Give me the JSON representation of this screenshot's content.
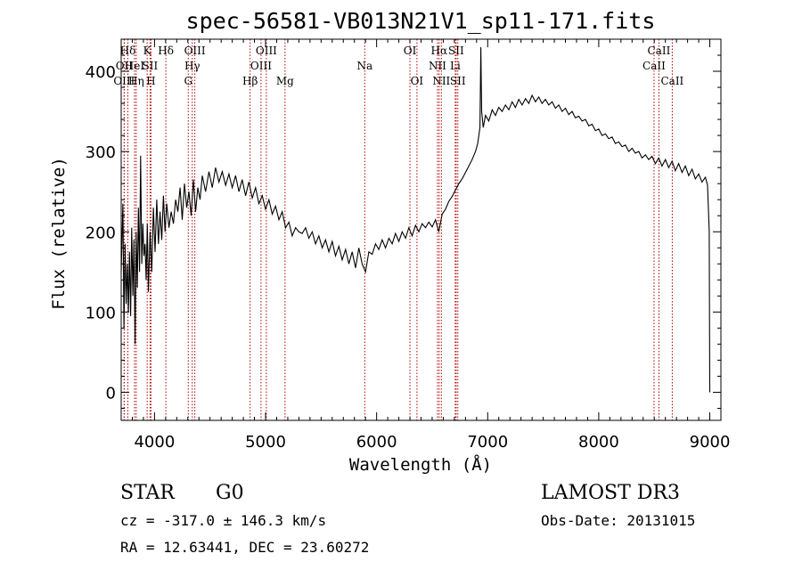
{
  "chart_data": {
    "type": "line",
    "title": "spec-56581-VB013N21V1_sp11-171.fits",
    "xlabel": "Wavelength (Å)",
    "ylabel": "Flux (relative)",
    "xlim": [
      3700,
      9100
    ],
    "ylim": [
      -35,
      440
    ],
    "xticks": [
      4000,
      5000,
      6000,
      7000,
      8000,
      9000
    ],
    "yticks": [
      0,
      100,
      200,
      300,
      400
    ],
    "grid": false,
    "series": [
      {
        "points": [
          [
            3700,
            150
          ],
          [
            3715,
            235
          ],
          [
            3725,
            80
          ],
          [
            3735,
            185
          ],
          [
            3745,
            110
          ],
          [
            3755,
            160
          ],
          [
            3765,
            100
          ],
          [
            3775,
            175
          ],
          [
            3785,
            95
          ],
          [
            3795,
            205
          ],
          [
            3805,
            120
          ],
          [
            3815,
            190
          ],
          [
            3825,
            60
          ],
          [
            3835,
            200
          ],
          [
            3845,
            130
          ],
          [
            3855,
            230
          ],
          [
            3865,
            150
          ],
          [
            3875,
            295
          ],
          [
            3885,
            160
          ],
          [
            3895,
            210
          ],
          [
            3905,
            170
          ],
          [
            3915,
            185
          ],
          [
            3925,
            140
          ],
          [
            3935,
            210
          ],
          [
            3945,
            125
          ],
          [
            3960,
            200
          ],
          [
            3975,
            150
          ],
          [
            3990,
            230
          ],
          [
            4005,
            175
          ],
          [
            4020,
            240
          ],
          [
            4035,
            185
          ],
          [
            4050,
            225
          ],
          [
            4065,
            190
          ],
          [
            4080,
            245
          ],
          [
            4095,
            200
          ],
          [
            4110,
            235
          ],
          [
            4130,
            205
          ],
          [
            4150,
            225
          ],
          [
            4170,
            210
          ],
          [
            4190,
            240
          ],
          [
            4210,
            225
          ],
          [
            4230,
            255
          ],
          [
            4250,
            215
          ],
          [
            4270,
            260
          ],
          [
            4290,
            230
          ],
          [
            4310,
            250
          ],
          [
            4330,
            220
          ],
          [
            4350,
            265
          ],
          [
            4370,
            225
          ],
          [
            4390,
            255
          ],
          [
            4410,
            240
          ],
          [
            4430,
            270
          ],
          [
            4460,
            250
          ],
          [
            4490,
            275
          ],
          [
            4520,
            255
          ],
          [
            4550,
            280
          ],
          [
            4580,
            262
          ],
          [
            4610,
            275
          ],
          [
            4640,
            258
          ],
          [
            4670,
            272
          ],
          [
            4700,
            255
          ],
          [
            4730,
            270
          ],
          [
            4760,
            250
          ],
          [
            4790,
            265
          ],
          [
            4820,
            245
          ],
          [
            4850,
            262
          ],
          [
            4880,
            242
          ],
          [
            4910,
            255
          ],
          [
            4940,
            235
          ],
          [
            4970,
            245
          ],
          [
            5000,
            228
          ],
          [
            5030,
            240
          ],
          [
            5060,
            222
          ],
          [
            5090,
            232
          ],
          [
            5120,
            215
          ],
          [
            5150,
            225
          ],
          [
            5180,
            205
          ],
          [
            5210,
            212
          ],
          [
            5240,
            195
          ],
          [
            5270,
            205
          ],
          [
            5300,
            200
          ],
          [
            5330,
            198
          ],
          [
            5360,
            205
          ],
          [
            5390,
            192
          ],
          [
            5420,
            200
          ],
          [
            5450,
            185
          ],
          [
            5480,
            195
          ],
          [
            5510,
            180
          ],
          [
            5540,
            190
          ],
          [
            5570,
            175
          ],
          [
            5600,
            188
          ],
          [
            5630,
            170
          ],
          [
            5660,
            182
          ],
          [
            5690,
            165
          ],
          [
            5720,
            178
          ],
          [
            5750,
            160
          ],
          [
            5780,
            175
          ],
          [
            5810,
            155
          ],
          [
            5840,
            180
          ],
          [
            5870,
            160
          ],
          [
            5900,
            150
          ],
          [
            5930,
            175
          ],
          [
            5960,
            172
          ],
          [
            5990,
            185
          ],
          [
            6020,
            178
          ],
          [
            6050,
            190
          ],
          [
            6080,
            180
          ],
          [
            6110,
            192
          ],
          [
            6140,
            185
          ],
          [
            6170,
            198
          ],
          [
            6200,
            188
          ],
          [
            6230,
            200
          ],
          [
            6260,
            192
          ],
          [
            6290,
            205
          ],
          [
            6320,
            195
          ],
          [
            6350,
            208
          ],
          [
            6380,
            200
          ],
          [
            6410,
            210
          ],
          [
            6440,
            205
          ],
          [
            6470,
            212
          ],
          [
            6500,
            206
          ],
          [
            6530,
            215
          ],
          [
            6560,
            200
          ],
          [
            6590,
            222
          ],
          [
            6620,
            228
          ],
          [
            6650,
            238
          ],
          [
            6680,
            244
          ],
          [
            6710,
            252
          ],
          [
            6740,
            260
          ],
          [
            6770,
            266
          ],
          [
            6800,
            274
          ],
          [
            6830,
            282
          ],
          [
            6860,
            290
          ],
          [
            6890,
            300
          ],
          [
            6910,
            310
          ],
          [
            6930,
            330
          ],
          [
            6938,
            430
          ],
          [
            6946,
            350
          ],
          [
            6960,
            330
          ],
          [
            6980,
            345
          ],
          [
            7010,
            338
          ],
          [
            7040,
            352
          ],
          [
            7070,
            345
          ],
          [
            7100,
            355
          ],
          [
            7130,
            350
          ],
          [
            7160,
            358
          ],
          [
            7190,
            352
          ],
          [
            7220,
            362
          ],
          [
            7250,
            355
          ],
          [
            7280,
            365
          ],
          [
            7310,
            358
          ],
          [
            7340,
            366
          ],
          [
            7370,
            360
          ],
          [
            7400,
            370
          ],
          [
            7430,
            362
          ],
          [
            7460,
            368
          ],
          [
            7490,
            360
          ],
          [
            7520,
            365
          ],
          [
            7550,
            358
          ],
          [
            7580,
            362
          ],
          [
            7610,
            354
          ],
          [
            7640,
            358
          ],
          [
            7670,
            350
          ],
          [
            7700,
            354
          ],
          [
            7730,
            346
          ],
          [
            7760,
            350
          ],
          [
            7790,
            342
          ],
          [
            7820,
            344
          ],
          [
            7850,
            338
          ],
          [
            7880,
            340
          ],
          [
            7910,
            332
          ],
          [
            7940,
            334
          ],
          [
            7970,
            326
          ],
          [
            8000,
            328
          ],
          [
            8030,
            320
          ],
          [
            8060,
            322
          ],
          [
            8090,
            316
          ],
          [
            8120,
            318
          ],
          [
            8150,
            310
          ],
          [
            8180,
            312
          ],
          [
            8210,
            306
          ],
          [
            8240,
            308
          ],
          [
            8270,
            300
          ],
          [
            8300,
            304
          ],
          [
            8330,
            298
          ],
          [
            8360,
            300
          ],
          [
            8390,
            292
          ],
          [
            8420,
            296
          ],
          [
            8450,
            290
          ],
          [
            8480,
            294
          ],
          [
            8510,
            285
          ],
          [
            8540,
            292
          ],
          [
            8570,
            282
          ],
          [
            8600,
            290
          ],
          [
            8630,
            280
          ],
          [
            8660,
            288
          ],
          [
            8690,
            276
          ],
          [
            8720,
            285
          ],
          [
            8750,
            274
          ],
          [
            8780,
            282
          ],
          [
            8810,
            270
          ],
          [
            8840,
            278
          ],
          [
            8870,
            266
          ],
          [
            8900,
            272
          ],
          [
            8930,
            262
          ],
          [
            8960,
            268
          ],
          [
            8980,
            258
          ],
          [
            8995,
            200
          ],
          [
            9000,
            0
          ]
        ]
      }
    ],
    "spectral_lines": [
      {
        "label": "Hδ",
        "wavelength": 3760,
        "row": 1
      },
      {
        "label": "OII",
        "wavelength": 3727,
        "row": 2
      },
      {
        "label": "OIII",
        "wavelength": 3727,
        "row": 3
      },
      {
        "label": "HeI",
        "wavelength": 3820,
        "row": 2
      },
      {
        "label": "Hη",
        "wavelength": 3835,
        "row": 3
      },
      {
        "label": "K",
        "wavelength": 3934,
        "row": 1
      },
      {
        "label": "SII",
        "wavelength": 3960,
        "row": 2
      },
      {
        "label": "H",
        "wavelength": 3968,
        "row": 3
      },
      {
        "label": "Hδ",
        "wavelength": 4102,
        "row": 1
      },
      {
        "label": "OIII",
        "wavelength": 4363,
        "row": 1
      },
      {
        "label": "Hγ",
        "wavelength": 4340,
        "row": 2
      },
      {
        "label": "G",
        "wavelength": 4304,
        "row": 3
      },
      {
        "label": "Hβ",
        "wavelength": 4861,
        "row": 3
      },
      {
        "label": "OIII",
        "wavelength": 4959,
        "row": 2
      },
      {
        "label": "OIII",
        "wavelength": 5007,
        "row": 1
      },
      {
        "label": "Mg",
        "wavelength": 5175,
        "row": 3
      },
      {
        "label": "Na",
        "wavelength": 5893,
        "row": 2
      },
      {
        "label": "OI",
        "wavelength": 6300,
        "row": 1
      },
      {
        "label": "OI",
        "wavelength": 6363,
        "row": 3
      },
      {
        "label": "NII",
        "wavelength": 6548,
        "row": 2
      },
      {
        "label": "Hα",
        "wavelength": 6563,
        "row": 1
      },
      {
        "label": "NII",
        "wavelength": 6583,
        "row": 3
      },
      {
        "label": "SII",
        "wavelength": 6716,
        "row": 1
      },
      {
        "label": "Li",
        "wavelength": 6708,
        "row": 2
      },
      {
        "label": "SII",
        "wavelength": 6731,
        "row": 3
      },
      {
        "label": "CaII",
        "wavelength": 8498,
        "row": 2
      },
      {
        "label": "CaII",
        "wavelength": 8542,
        "row": 1
      },
      {
        "label": "CaII",
        "wavelength": 8662,
        "row": 3
      }
    ]
  },
  "info": {
    "object_class": "STAR",
    "subclass": "G0",
    "survey": "LAMOST DR3",
    "cz": "cz = -317.0 ± 146.3 km/s",
    "obs_date": "Obs-Date: 20131015",
    "coords": "RA =  12.63441, DEC =  23.60272"
  },
  "colors": {
    "spectrum": "#000000",
    "line_marker": "#b30000"
  }
}
